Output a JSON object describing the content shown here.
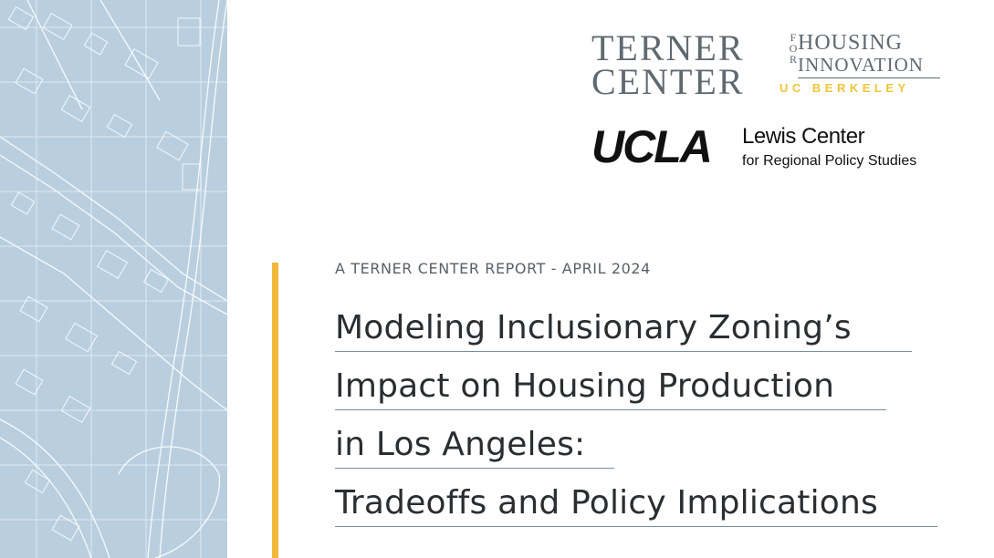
{
  "logos": {
    "terner": {
      "line1": "TERNER",
      "line2": "CENTER",
      "for_letters": [
        "F",
        "O",
        "R"
      ],
      "housing": "HOUSING",
      "innovation": "INNOVATION",
      "berkeley": "UC BERKELEY"
    },
    "ucla": {
      "wordmark": "UCLA",
      "center_name": "Lewis Center",
      "center_sub": "for Regional Policy Studies"
    }
  },
  "report": {
    "label": "A TERNER CENTER REPORT - APRIL 2024",
    "title_lines": [
      "Modeling Inclusionary Zoning’s",
      "Impact on Housing Production",
      "in Los Angeles:",
      "Tradeoffs and Policy Implications"
    ]
  },
  "colors": {
    "map_background": "#b9cfe0",
    "map_lines": "#ffffff",
    "accent": "#f0b73a",
    "logo_gray": "#5f6970",
    "logo_gold": "#f0c43a",
    "title_text": "#2a2e31",
    "underline": "#7d8d9e"
  }
}
